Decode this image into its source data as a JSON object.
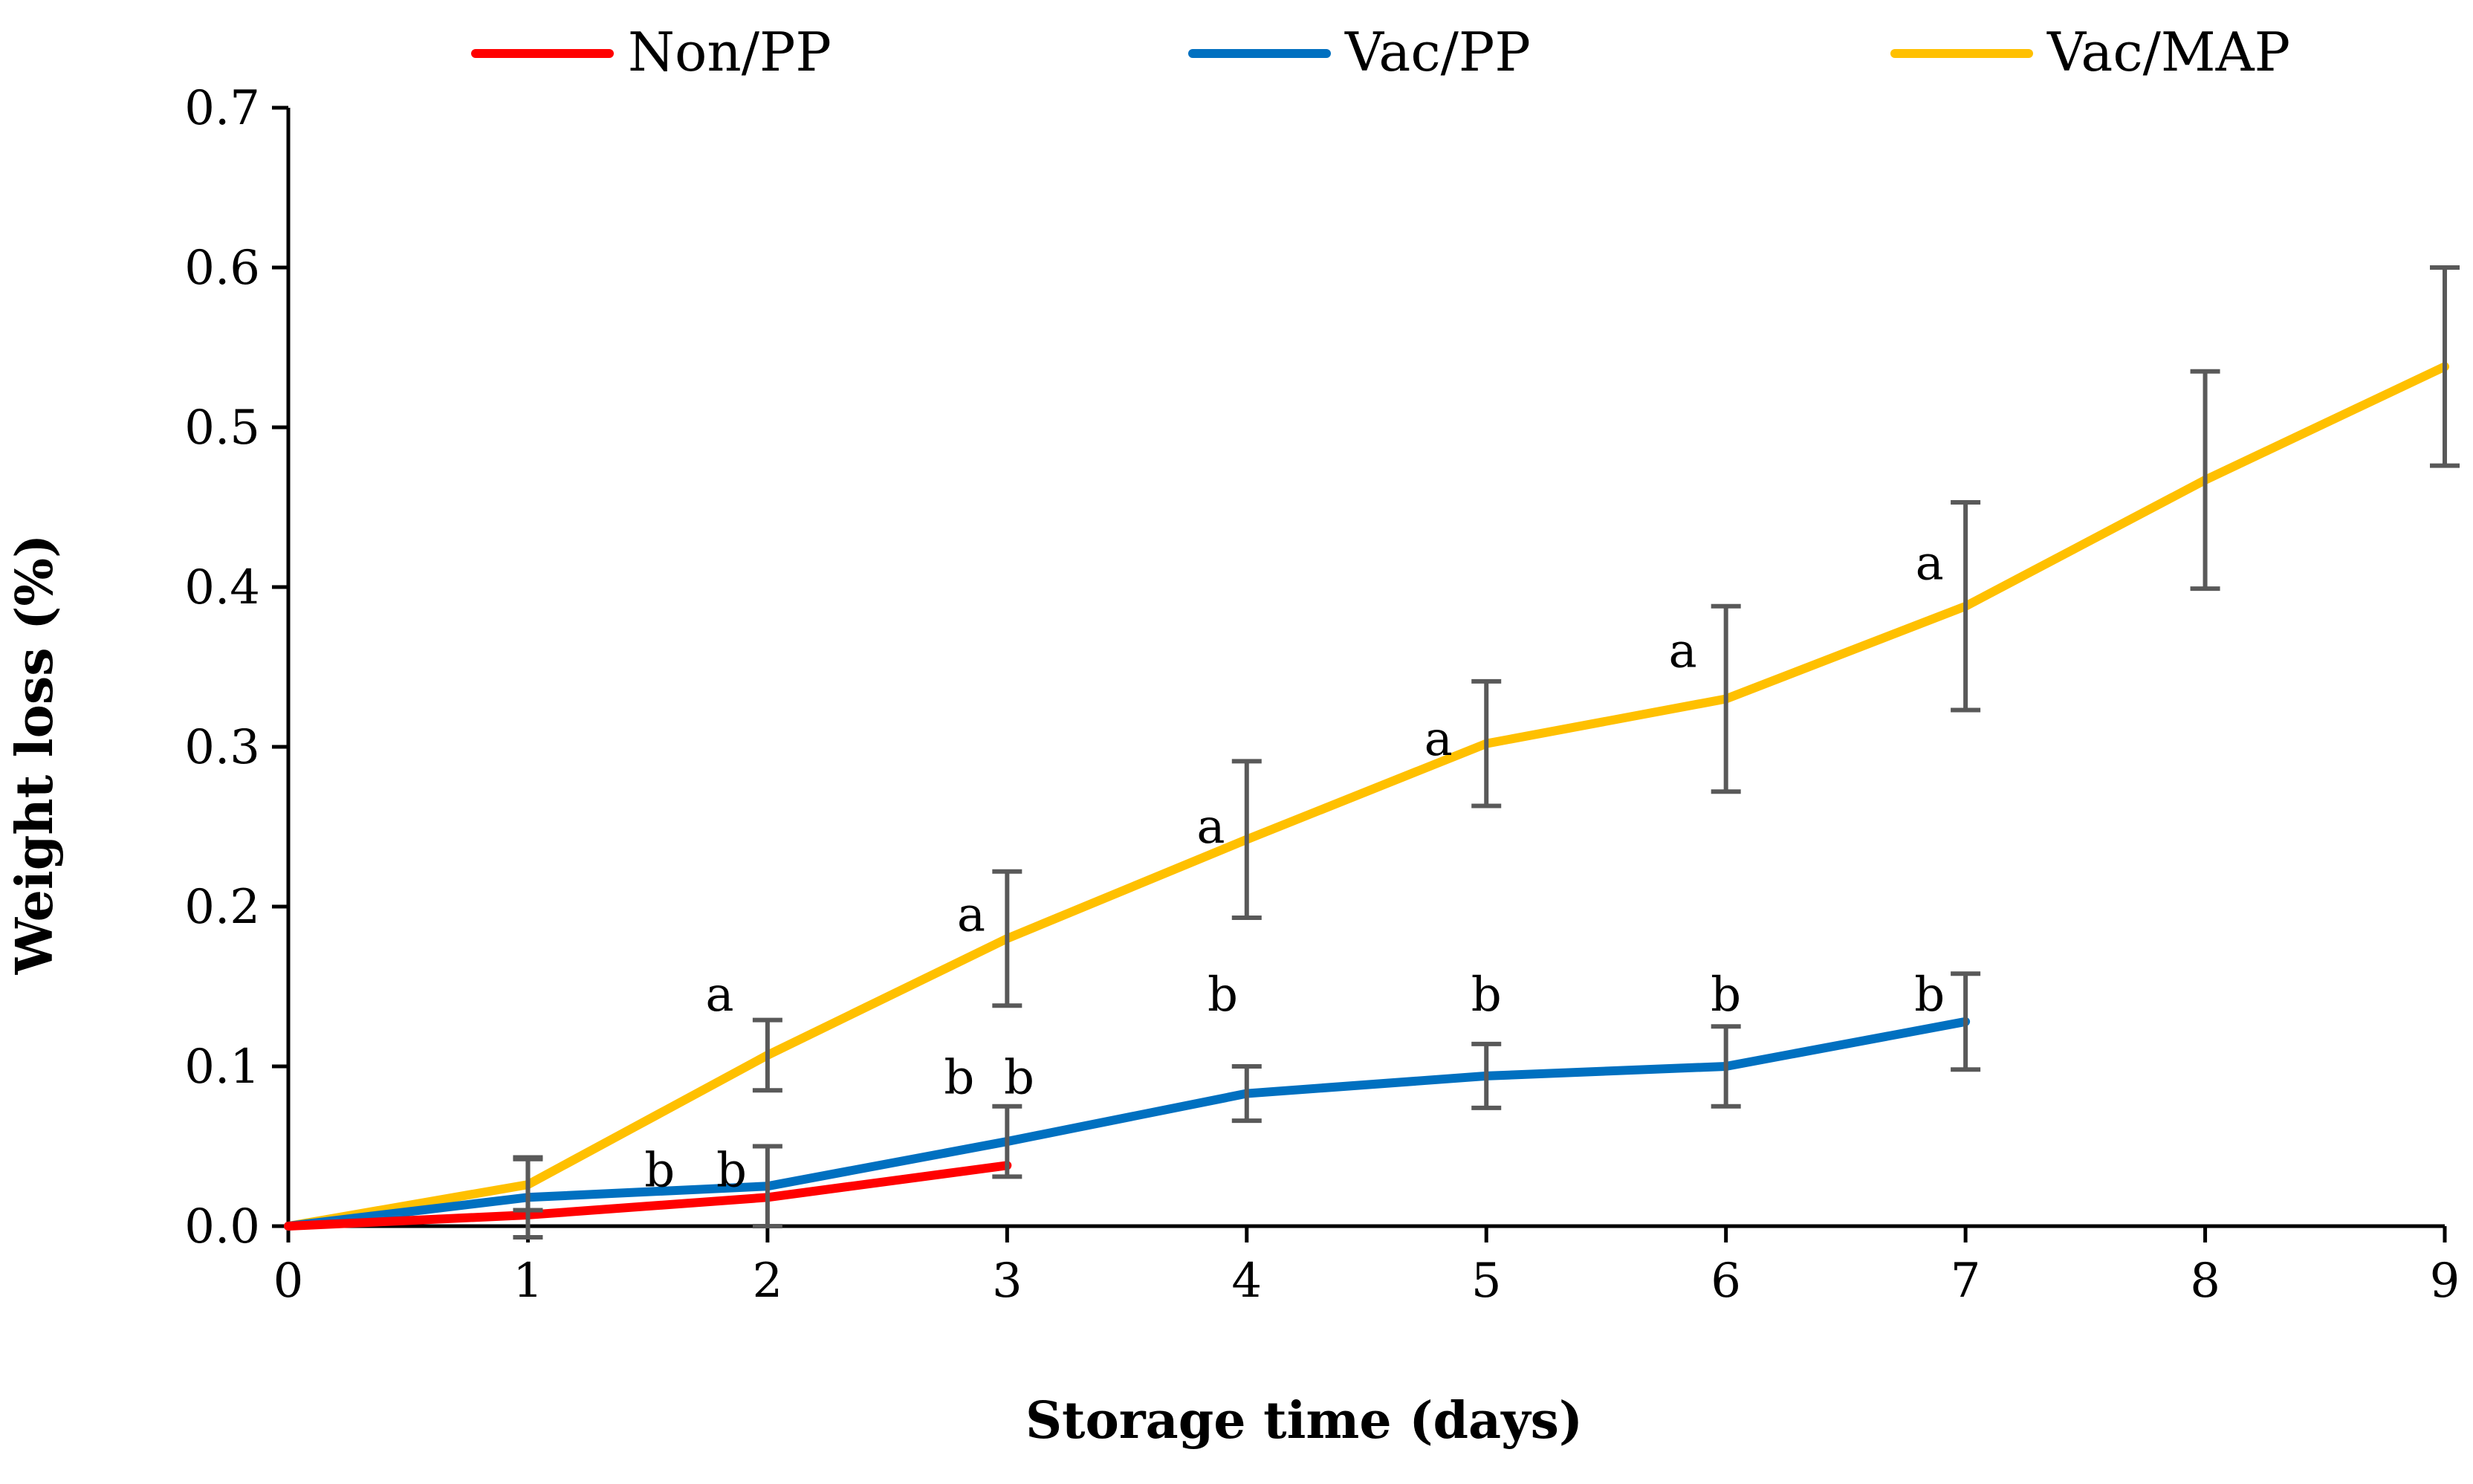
{
  "chart_data": {
    "type": "line",
    "xlabel": "Storage time (days)",
    "ylabel": "Weight loss (%)",
    "xlim": [
      0,
      9
    ],
    "ylim": [
      0,
      0.7
    ],
    "x_ticks": [
      "0",
      "1",
      "2",
      "3",
      "4",
      "5",
      "6",
      "7",
      "8",
      "9"
    ],
    "y_ticks": [
      "0.0",
      "0.1",
      "0.2",
      "0.3",
      "0.4",
      "0.5",
      "0.6",
      "0.7"
    ],
    "grid": false,
    "legend_position": "top",
    "series": [
      {
        "name": "Non/PP",
        "color": "#ff0000",
        "x": [
          0,
          1,
          2,
          3
        ],
        "y": [
          0,
          0.007,
          0.018,
          0.038
        ],
        "error": [
          0,
          0,
          0,
          0
        ]
      },
      {
        "name": "Vac/PP",
        "color": "#0070c0",
        "x": [
          0,
          1,
          2,
          3,
          4,
          5,
          6,
          7
        ],
        "y": [
          0,
          0.018,
          0.025,
          0.053,
          0.083,
          0.094,
          0.1,
          0.128
        ],
        "error": [
          0,
          0.025,
          0.025,
          0.022,
          0.017,
          0.02,
          0.025,
          0.03
        ]
      },
      {
        "name": "Vac/MAP",
        "color": "#ffc000",
        "x": [
          0,
          1,
          2,
          3,
          4,
          5,
          6,
          7,
          8,
          9
        ],
        "y": [
          0,
          0.026,
          0.107,
          0.18,
          0.242,
          0.302,
          0.33,
          0.388,
          0.467,
          0.538
        ],
        "error": [
          0,
          0.016,
          0.022,
          0.042,
          0.049,
          0.039,
          0.058,
          0.065,
          0.068,
          0.062
        ]
      }
    ],
    "annotations": [
      {
        "text": "b",
        "x": 1.55,
        "y": 0.025
      },
      {
        "text": "b",
        "x": 1.85,
        "y": 0.025
      },
      {
        "text": "a",
        "x": 1.8,
        "y": 0.135
      },
      {
        "text": "b",
        "x": 2.8,
        "y": 0.083
      },
      {
        "text": "b",
        "x": 3.05,
        "y": 0.083
      },
      {
        "text": "a",
        "x": 2.85,
        "y": 0.185
      },
      {
        "text": "b",
        "x": 3.9,
        "y": 0.135
      },
      {
        "text": "a",
        "x": 3.85,
        "y": 0.24
      },
      {
        "text": "b",
        "x": 5.0,
        "y": 0.135
      },
      {
        "text": "a",
        "x": 4.8,
        "y": 0.295
      },
      {
        "text": "b",
        "x": 6.0,
        "y": 0.135
      },
      {
        "text": "a",
        "x": 5.82,
        "y": 0.35
      },
      {
        "text": "b",
        "x": 6.85,
        "y": 0.135
      },
      {
        "text": "a",
        "x": 6.85,
        "y": 0.405
      }
    ],
    "errorbar_color": "#595959",
    "axis_color": "#000000"
  }
}
